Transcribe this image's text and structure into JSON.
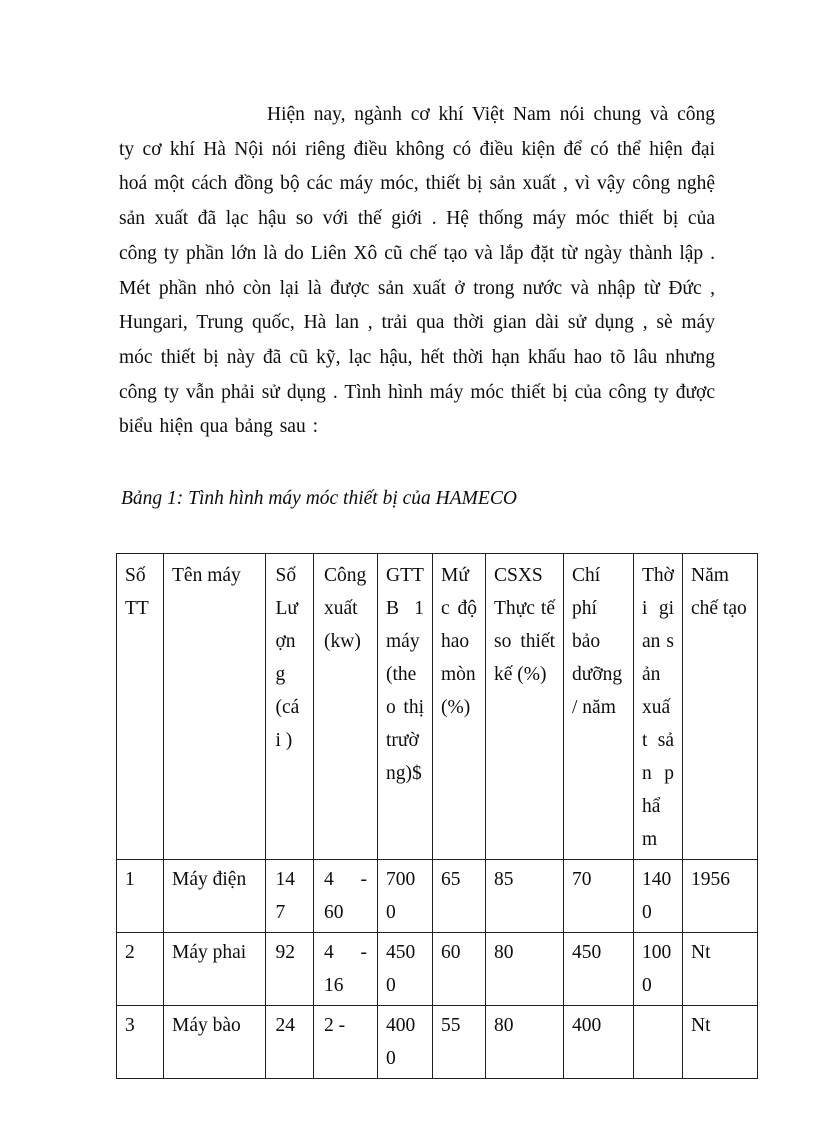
{
  "document": {
    "paragraph": "Hiện nay, ngành cơ khí Việt Nam nói chung và công ty cơ khí Hà Nội nói riêng điều không có điều kiện để có thể hiện đại hoá một cách đồng bộ các máy móc, thiết bị sản xuất , vì vậy công nghệ sản xuất đã lạc hậu so với thế giới . Hệ thống máy móc thiết bị của công ty phần lớn là do Liên Xô cũ chế tạo và lắp đặt từ ngày thành lập . Mét phần nhỏ còn lại là được sản xuất ở trong nước và nhập từ Đức , Hungari, Trung quốc, Hà lan , trải qua thời gian dài sử dụng , sè máy móc thiết bị này đã cũ kỹ, lạc hậu, hết thời hạn khấu hao tõ lâu nhưng công ty vẫn phải sử dụng . Tình hình máy móc thiết bị của công ty được biểu hiện qua bảng sau :",
    "table_caption": "Bảng 1: Tình hình máy móc thiết bị của HAMECO",
    "table": {
      "headers": [
        "Số TT",
        "Tên máy",
        "Số Lượng (cái )",
        "Công xuất (kw)",
        "GTTB 1 máy (theo thị trường)$",
        "Mức độ hao mòn (%)",
        "CSXS Thực tế so thiết kế (%)",
        "Chí phí bảo dưỡng/ năm",
        "Thời gian sản xuất sản phẩm",
        "Năm chế tạo"
      ],
      "rows": [
        [
          "1",
          "Máy điện",
          "147",
          "4 - 60",
          "7000",
          "65",
          "85",
          "70",
          "1400",
          "1956"
        ],
        [
          "2",
          "Máy phai",
          "92",
          "4 - 16",
          "4500",
          "60",
          "80",
          "450",
          "1000",
          "Nt"
        ],
        [
          "3",
          "Máy bào",
          "24",
          "2 -",
          "4000",
          "55",
          "80",
          "400",
          "",
          "Nt"
        ]
      ]
    }
  }
}
